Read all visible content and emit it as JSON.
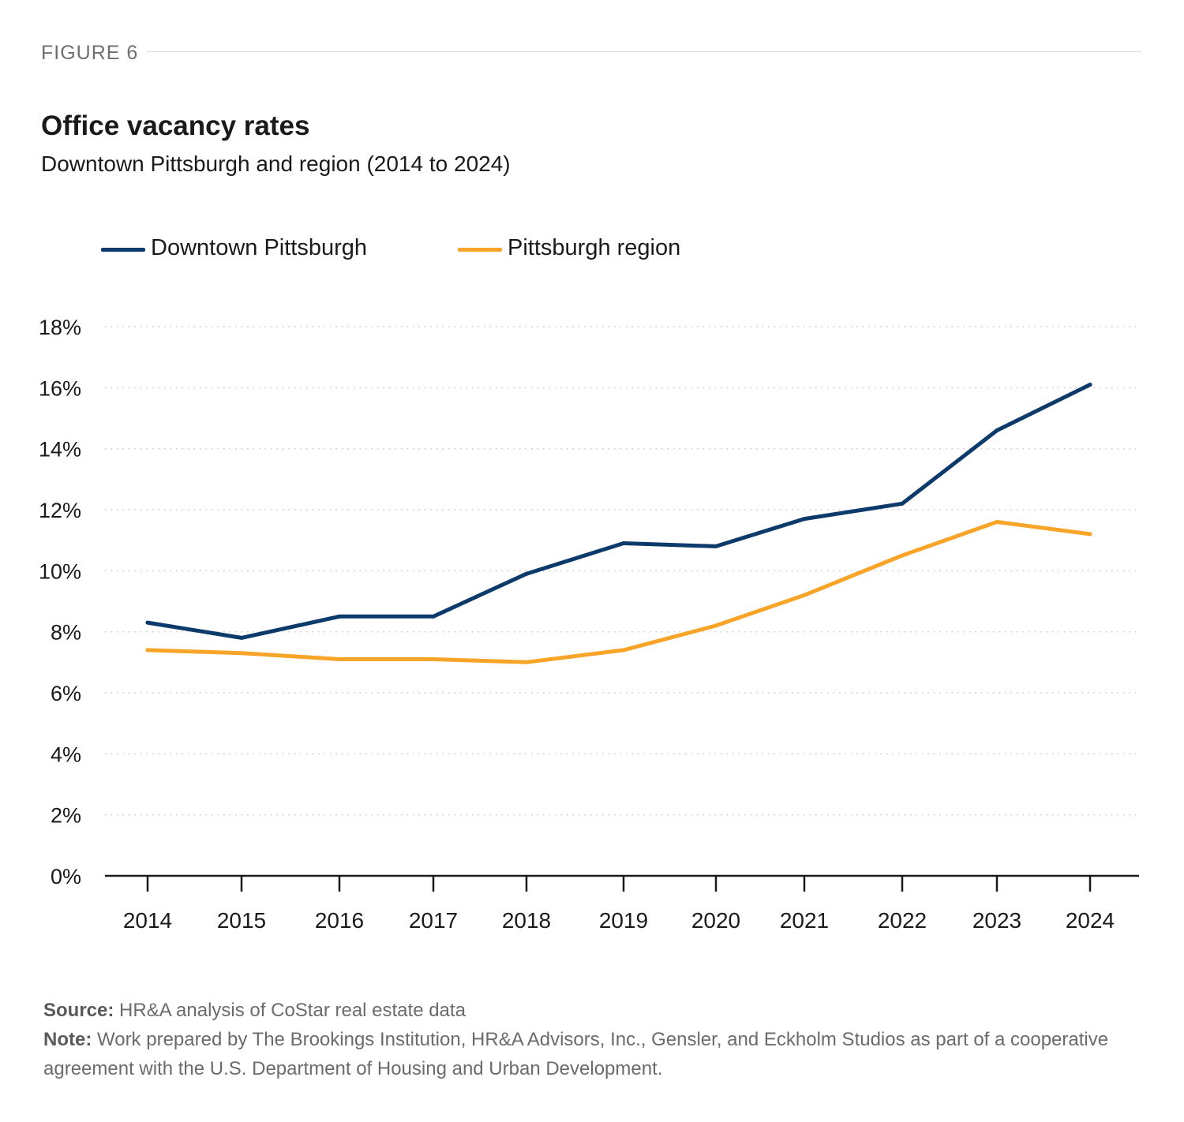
{
  "figure_label": "FIGURE 6",
  "footer": {
    "source_label": "Source:",
    "source_text": "HR&A analysis of CoStar real estate data",
    "note_label": "Note:",
    "note_text": "Work prepared by The Brookings Institution, HR&A Advisors, Inc., Gensler, and Eckholm Studios as part of a cooperative agreement with the U.S. Department of Housing and Urban Development."
  },
  "colors": {
    "downtown": "#0b3a6b",
    "region": "#f7a428",
    "grid": "#c9c9c9",
    "axis": "#1a1a1a"
  },
  "chart_data": {
    "type": "line",
    "title": "Office vacancy rates",
    "subtitle": "Downtown Pittsburgh and region (2014 to 2024)",
    "xlabel": "",
    "ylabel": "",
    "x": [
      "2014",
      "2015",
      "2016",
      "2017",
      "2018",
      "2019",
      "2020",
      "2021",
      "2022",
      "2023",
      "2024"
    ],
    "ylim": [
      0,
      18
    ],
    "yticks": [
      "0%",
      "2%",
      "4%",
      "6%",
      "8%",
      "10%",
      "12%",
      "14%",
      "16%",
      "18%"
    ],
    "grid": "horizontal dotted",
    "legend": "top-left",
    "series": [
      {
        "name": "Downtown Pittsburgh",
        "color": "#0b3a6b",
        "values": [
          8.3,
          7.8,
          8.5,
          8.5,
          9.9,
          10.9,
          10.8,
          11.7,
          12.2,
          14.6,
          16.1
        ]
      },
      {
        "name": "Pittsburgh region",
        "color": "#f7a428",
        "values": [
          7.4,
          7.3,
          7.1,
          7.1,
          7.0,
          7.4,
          8.2,
          9.2,
          10.5,
          11.6,
          11.2
        ]
      }
    ]
  }
}
